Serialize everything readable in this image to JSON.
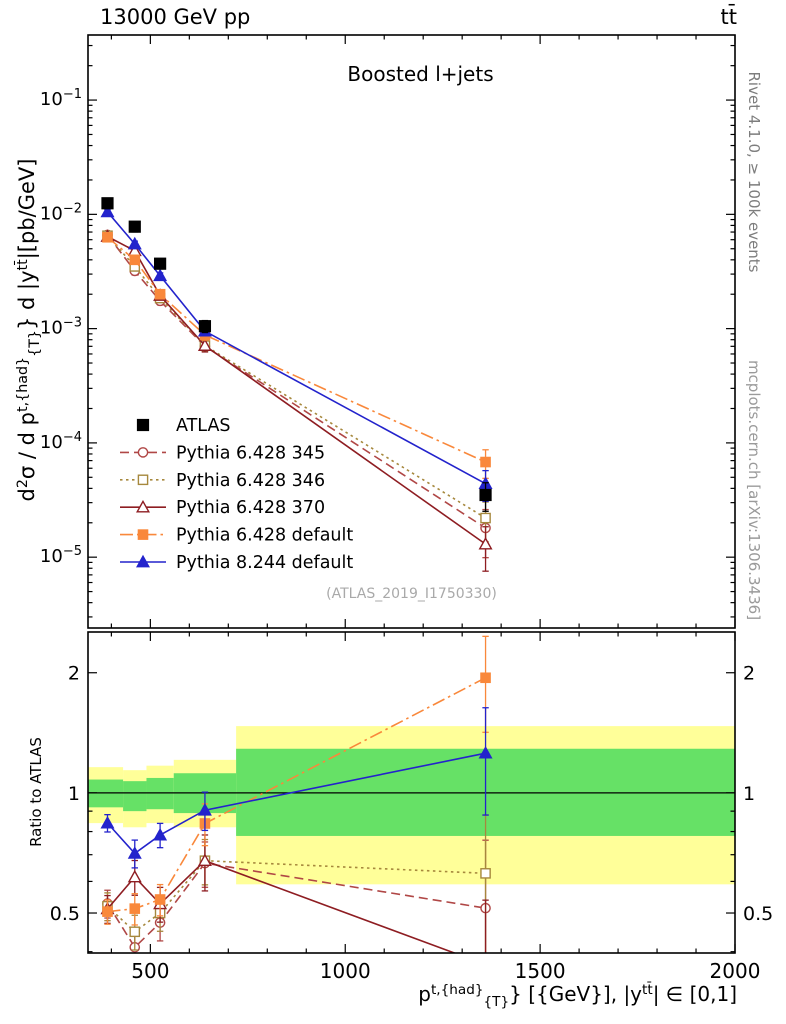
{
  "header": {
    "left": "13000 GeV pp",
    "right": "tt̄"
  },
  "labels": {
    "panel_title": "Boosted l+jets",
    "watermark": "(ATLAS_2019_I1750330)",
    "ylabel_ratio": "Ratio to ATLAS"
  },
  "axis_labels": {
    "ylabel_top_segments": [
      [
        "text",
        "d"
      ],
      [
        "sup",
        "2"
      ],
      [
        "text",
        "σ / d p"
      ],
      [
        "sup",
        "t,{had}"
      ],
      [
        "sub",
        "{T}"
      ],
      [
        "text",
        "} d |y"
      ],
      [
        "sup",
        "tt̄"
      ],
      [
        "text",
        "|[pb/GeV]"
      ]
    ],
    "xlabel_segments": [
      [
        "text",
        "p"
      ],
      [
        "sup",
        "t,{had}"
      ],
      [
        "sub",
        "{T}"
      ],
      [
        "text",
        "} [{GeV}], |y"
      ],
      [
        "sup",
        "tt̄"
      ],
      [
        "text",
        "| ∈ [0,1]"
      ]
    ]
  },
  "side_notes": {
    "rivet": "Rivet 4.1.0, ≥ 100k events",
    "mcplots": "mcplots.cern.ch [arXiv:1306.3436]"
  },
  "chart_data": {
    "type": "line",
    "title": "Boosted l+jets",
    "xlabel": "p_T^{t,had} [GeV], |y^{ttbar}| in [0,1]",
    "ylabel": "d2sigma / d pT^{t,had} d |y^{ttbar}| [pb/GeV]",
    "x_scale": "linear",
    "x_range": [
      340,
      2000
    ],
    "x_major_ticks": [
      500,
      1000,
      1500,
      2000
    ],
    "x_minor_step": 100,
    "x_points": [
      390,
      460,
      525,
      640,
      1360
    ],
    "bin_edges": [
      350,
      430,
      490,
      560,
      720,
      2000
    ],
    "top_panel": {
      "y_scale": "log",
      "y_range": [
        2.4e-06,
        0.371
      ],
      "y_decades": [
        -1,
        -2,
        -3,
        -4,
        -5
      ]
    },
    "ratio_panel": {
      "y_scale": "log",
      "y_range": [
        0.397,
        2.53
      ],
      "y_ticks": [
        {
          "v": 0.5,
          "label": "0.5"
        },
        {
          "v": 1,
          "label": "1"
        },
        {
          "v": 2,
          "label": "2"
        }
      ],
      "y_minor_ticks": [
        0.4,
        0.6,
        0.7,
        0.8,
        0.9
      ],
      "baseline": 1,
      "bands": [
        {
          "x0": 340,
          "x1": 430,
          "yellow": [
            0.84,
            1.16
          ],
          "green": [
            0.92,
            1.08
          ]
        },
        {
          "x0": 430,
          "x1": 490,
          "yellow": [
            0.82,
            1.14
          ],
          "green": [
            0.9,
            1.07
          ]
        },
        {
          "x0": 490,
          "x1": 560,
          "yellow": [
            0.84,
            1.17
          ],
          "green": [
            0.91,
            1.09
          ]
        },
        {
          "x0": 560,
          "x1": 720,
          "yellow": [
            0.82,
            1.21
          ],
          "green": [
            0.89,
            1.12
          ]
        },
        {
          "x0": 720,
          "x1": 2000,
          "yellow": [
            0.59,
            1.47
          ],
          "green": [
            0.78,
            1.29
          ]
        }
      ]
    },
    "band_colors": {
      "yellow": "#ffff99",
      "green": "#66e166"
    },
    "series": [
      {
        "name": "ATLAS",
        "color": "#000000",
        "marker": "square",
        "filled": true,
        "line": "none",
        "values": [
          0.0125,
          0.0078,
          0.0037,
          0.00105,
          3.5e-05
        ],
        "rel_err": [
          0.1,
          0.1,
          0.1,
          0.12,
          0.28
        ]
      },
      {
        "name": "Pythia 6.428 345",
        "color": "#b04746",
        "marker": "circle",
        "filled": false,
        "line": "dash",
        "values": [
          0.0066,
          0.0032,
          0.00175,
          0.0007,
          1.8e-05
        ],
        "rel_err": [
          0.07,
          0.08,
          0.08,
          0.1,
          0.45
        ],
        "ratio_rel_err": [
          0.08,
          0.11,
          0.1,
          0.13,
          0.48
        ]
      },
      {
        "name": "Pythia 6.428 346",
        "color": "#a6883d",
        "marker": "square",
        "filled": false,
        "line": "dot",
        "values": [
          0.0065,
          0.0035,
          0.00185,
          0.00071,
          2.2e-05
        ],
        "rel_err": [
          0.07,
          0.08,
          0.08,
          0.1,
          0.38
        ],
        "ratio_rel_err": [
          0.08,
          0.1,
          0.1,
          0.13,
          0.4
        ]
      },
      {
        "name": "Pythia 6.428 370",
        "color": "#8e1d22",
        "marker": "triangle",
        "filled": false,
        "line": "solid",
        "values": [
          0.0064,
          0.0048,
          0.00195,
          0.00071,
          1.3e-05
        ],
        "rel_err": [
          0.07,
          0.08,
          0.08,
          0.12,
          0.42
        ],
        "ratio_rel_err": [
          0.08,
          0.1,
          0.1,
          0.16,
          0.45
        ]
      },
      {
        "name": "Pythia 6.428 default",
        "color": "#f9883b",
        "marker": "square",
        "filled": true,
        "line": "dashdot",
        "values": [
          0.0063,
          0.004,
          0.002,
          0.00088,
          6.8e-05
        ],
        "rel_err": [
          0.06,
          0.07,
          0.07,
          0.1,
          0.28
        ],
        "ratio_rel_err": [
          0.07,
          0.09,
          0.09,
          0.12,
          0.27
        ]
      },
      {
        "name": "Pythia 8.244 default",
        "color": "#2323cc",
        "marker": "triangle",
        "filled": true,
        "line": "solid",
        "values": [
          0.0105,
          0.0055,
          0.0029,
          0.00095,
          4.4e-05
        ],
        "rel_err": [
          0.05,
          0.06,
          0.06,
          0.08,
          0.3
        ],
        "ratio_rel_err": [
          0.05,
          0.08,
          0.07,
          0.11,
          0.3
        ]
      }
    ]
  }
}
